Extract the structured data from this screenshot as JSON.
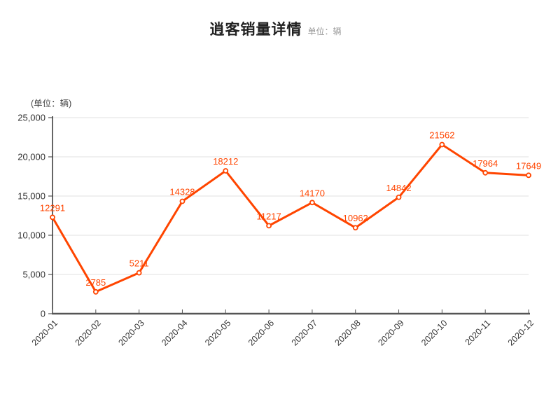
{
  "title": {
    "text": "逍客销量详情",
    "unit_label": "单位：辆"
  },
  "axis_unit_label": "(单位：辆)",
  "chart_data": {
    "type": "line",
    "title": "逍客销量详情",
    "unit": "辆",
    "categories": [
      "2020-01",
      "2020-02",
      "2020-03",
      "2020-04",
      "2020-05",
      "2020-06",
      "2020-07",
      "2020-08",
      "2020-09",
      "2020-10",
      "2020-11",
      "2020-12"
    ],
    "values": [
      12291,
      2785,
      5211,
      14328,
      18212,
      11217,
      14170,
      10962,
      14842,
      21562,
      17964,
      17649
    ],
    "xlabel": "",
    "ylabel": "(单位：辆)",
    "ylim": [
      0,
      25000
    ],
    "yticks": [
      0,
      5000,
      10000,
      15000,
      20000,
      25000
    ],
    "ytick_labels": [
      "0",
      "5,000",
      "10,000",
      "15,000",
      "20,000",
      "25,000"
    ],
    "x_label_rotation": 45,
    "grid": true,
    "legend_position": "none",
    "line_color": "#ff4500",
    "label_color": "#ff4500",
    "marker": "empty-circle",
    "marker_fill": "#ffffff",
    "grid_color": "#e0e0e0",
    "y_axis_color": "#333333",
    "x_axis_color": "#555555",
    "tick_label_color": "#333333"
  }
}
